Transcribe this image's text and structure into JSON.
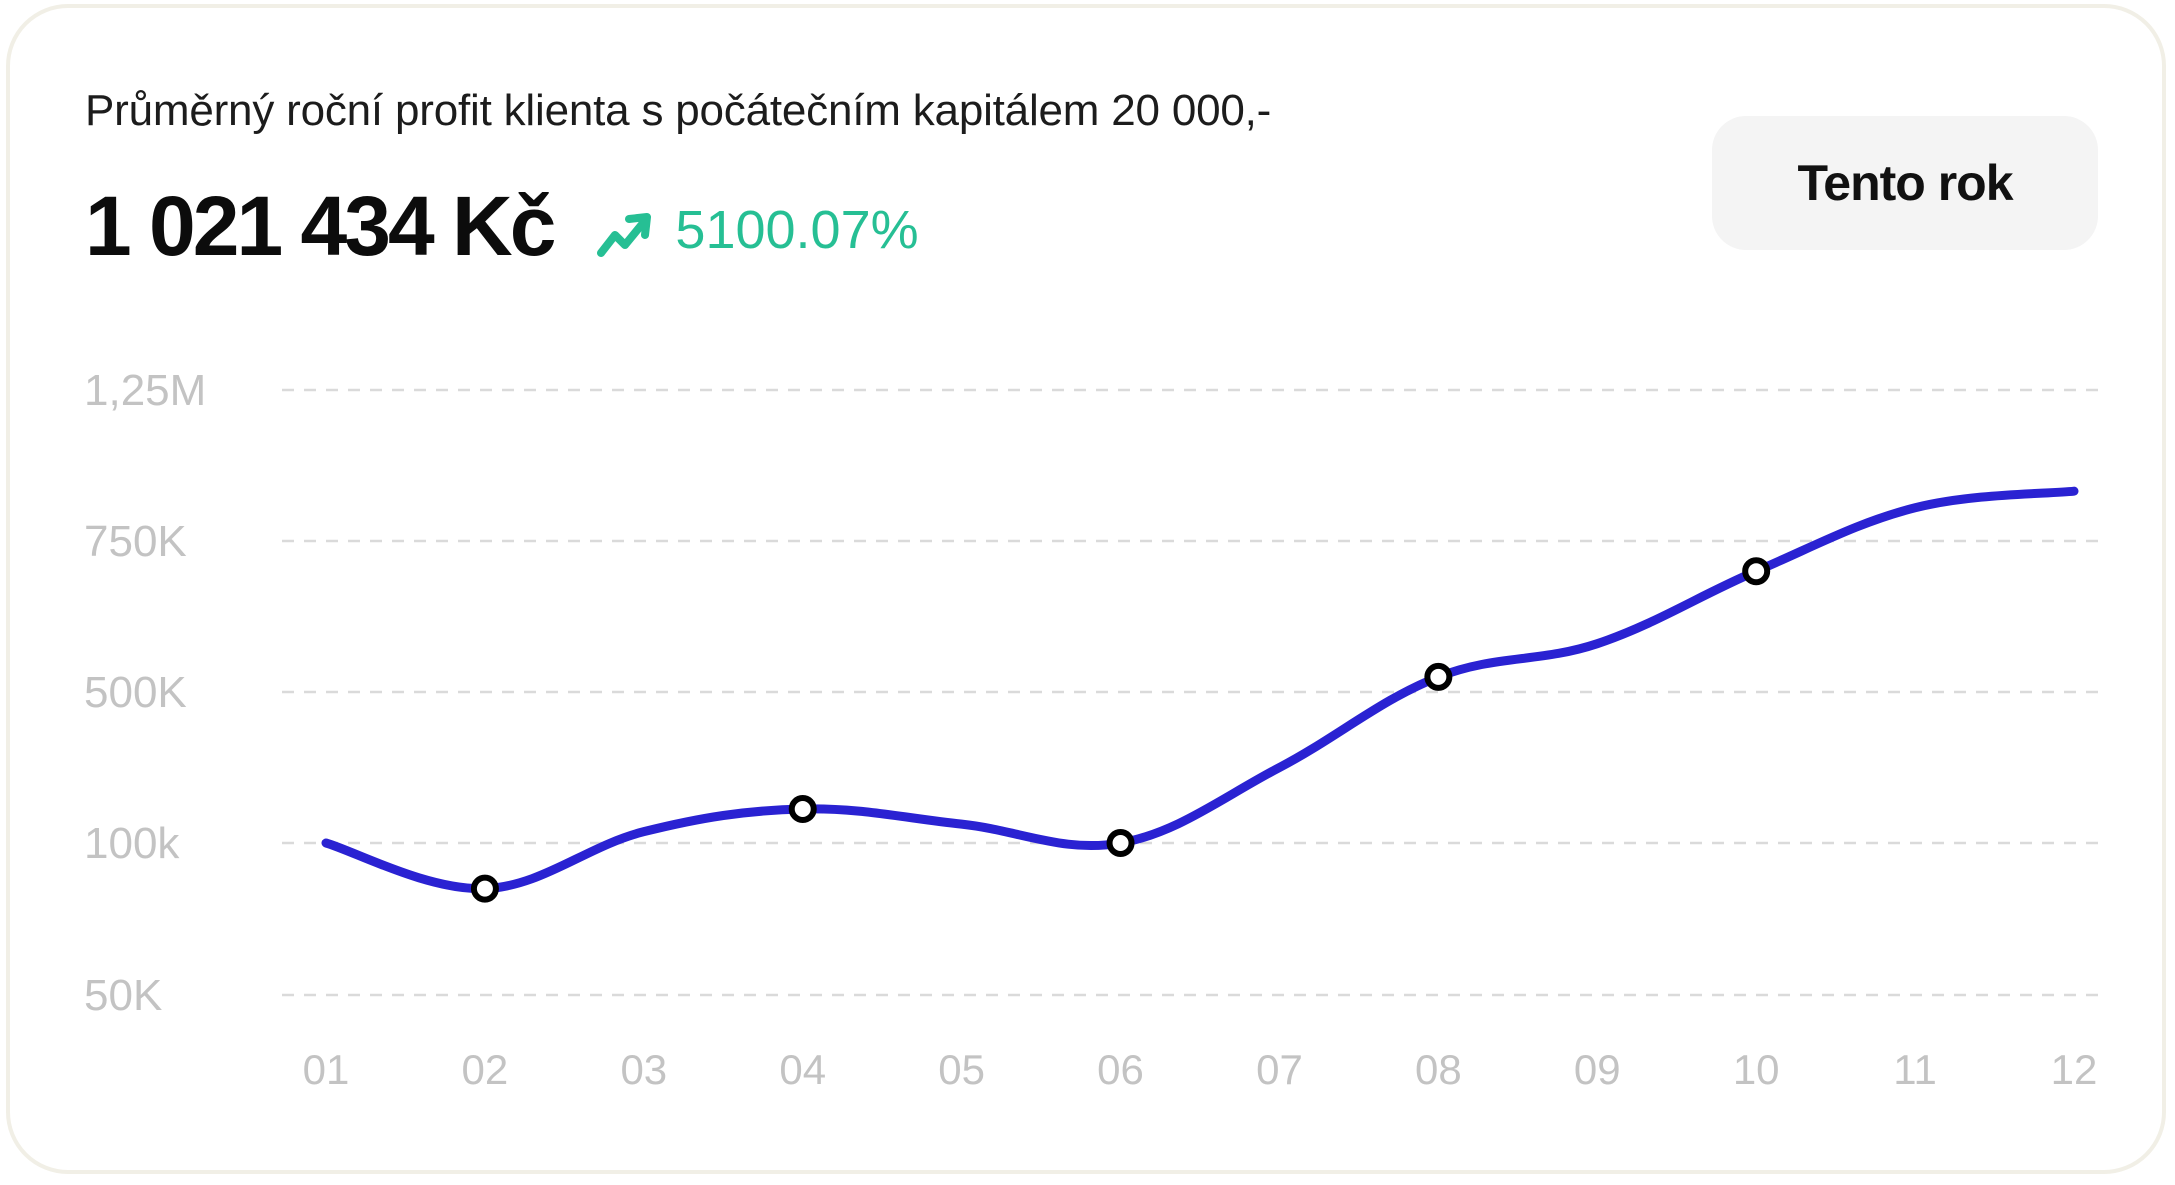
{
  "header": {
    "subtitle": "Průměrný roční  profit klienta s počátečním kapitálem 20 000,-",
    "total_value": "1 021 434 Kč",
    "change_percent": "5100.07%",
    "change_icon": "trending-up-icon",
    "period_button_label": "Tento rok"
  },
  "colors": {
    "line": "#2a22d2",
    "positive": "#26bf94",
    "grid": "#dadada",
    "tick": "#c3c3c3"
  },
  "chart_data": {
    "type": "line",
    "y_scale": "categorical-ticks",
    "y_ticks": [
      "1,25M",
      "750K",
      "500K",
      "100k",
      "50K"
    ],
    "categories": [
      "01",
      "02",
      "03",
      "04",
      "05",
      "06",
      "07",
      "08",
      "09",
      "10",
      "11",
      "12"
    ],
    "series": [
      {
        "values": [
          100000,
          85000,
          130000,
          190000,
          150000,
          100000,
          300000,
          525000,
          580000,
          700000,
          860000,
          915000
        ],
        "markers": [
          false,
          true,
          false,
          true,
          false,
          true,
          false,
          true,
          false,
          true,
          false,
          false
        ]
      }
    ],
    "grid": true,
    "grid_style": "dashed",
    "smooth": true
  }
}
